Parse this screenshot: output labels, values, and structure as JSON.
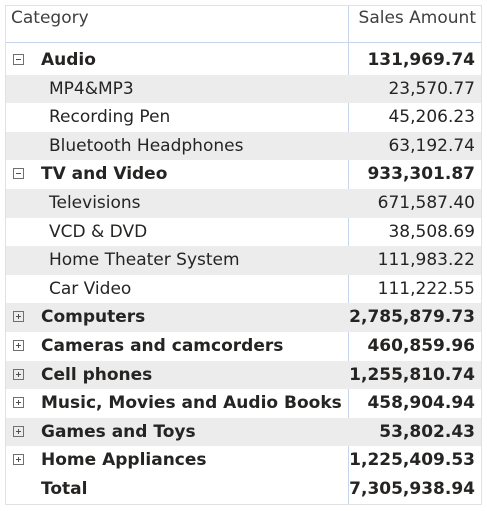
{
  "header": {
    "category": "Category",
    "sales_amount": "Sales Amount"
  },
  "rows": [
    {
      "category": "Audio",
      "amount": "131,969.74",
      "level": "group",
      "state": "expanded"
    },
    {
      "category": "MP4&MP3",
      "amount": "23,570.77",
      "level": "child"
    },
    {
      "category": "Recording Pen",
      "amount": "45,206.23",
      "level": "child"
    },
    {
      "category": "Bluetooth Headphones",
      "amount": "63,192.74",
      "level": "child"
    },
    {
      "category": "TV and Video",
      "amount": "933,301.87",
      "level": "group",
      "state": "expanded"
    },
    {
      "category": "Televisions",
      "amount": "671,587.40",
      "level": "child"
    },
    {
      "category": "VCD & DVD",
      "amount": "38,508.69",
      "level": "child"
    },
    {
      "category": "Home Theater System",
      "amount": "111,983.22",
      "level": "child"
    },
    {
      "category": "Car Video",
      "amount": "111,222.55",
      "level": "child"
    },
    {
      "category": "Computers",
      "amount": "2,785,879.73",
      "level": "group",
      "state": "collapsed"
    },
    {
      "category": "Cameras and camcorders",
      "amount": "460,859.96",
      "level": "group",
      "state": "collapsed"
    },
    {
      "category": "Cell phones",
      "amount": "1,255,810.74",
      "level": "group",
      "state": "collapsed"
    },
    {
      "category": "Music, Movies and Audio Books",
      "amount": "458,904.94",
      "level": "group",
      "state": "collapsed"
    },
    {
      "category": "Games and Toys",
      "amount": "53,802.43",
      "level": "group",
      "state": "collapsed"
    },
    {
      "category": "Home Appliances",
      "amount": "1,225,409.53",
      "level": "group",
      "state": "collapsed"
    }
  ],
  "total": {
    "label": "Total",
    "amount": "7,305,938.94"
  },
  "colors": {
    "row_shade": "#ececec",
    "divider": "#c8d4ea"
  }
}
